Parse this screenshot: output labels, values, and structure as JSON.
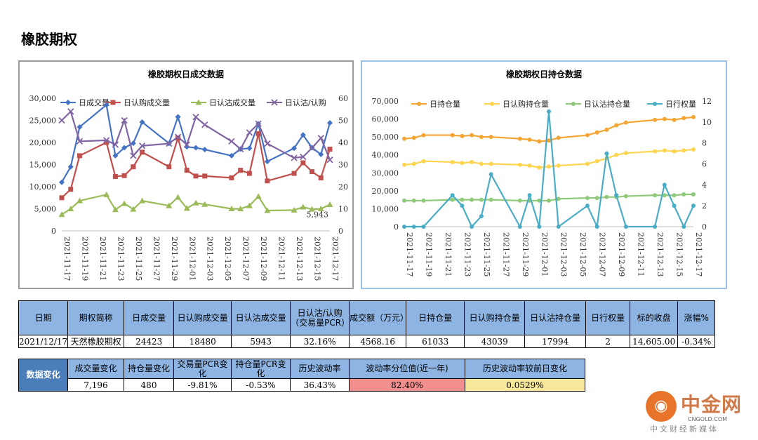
{
  "page": {
    "title": "橡胶期权"
  },
  "chart_data": [
    {
      "type": "line",
      "title": "橡胶期权日成交数据",
      "x": [
        "2021-11-17",
        "2021-11-18",
        "2021-11-19",
        "2021-11-22",
        "2021-11-23",
        "2021-11-24",
        "2021-11-25",
        "2021-11-26",
        "2021-11-29",
        "2021-11-30",
        "2021-12-01",
        "2021-12-02",
        "2021-12-03",
        "2021-12-06",
        "2021-12-07",
        "2021-12-08",
        "2021-12-09",
        "2021-12-10",
        "2021-12-13",
        "2021-12-14",
        "2021-12-15",
        "2021-12-16",
        "2021-12-17"
      ],
      "xticks": [
        "2021-11-17",
        "2021-11-19",
        "2021-11-21",
        "2021-11-23",
        "2021-11-25",
        "2021-11-27",
        "2021-11-29",
        "2021-12-01",
        "2021-12-03",
        "2021-12-05",
        "2021-12-07",
        "2021-12-09",
        "2021-12-11",
        "2021-12-13",
        "2021-12-15",
        "2021-12-17"
      ],
      "xmin": "2021-11-17",
      "xmax": "2021-12-17",
      "ylim_left": [
        0,
        30000
      ],
      "yticks_left": [
        "0",
        "5,000",
        "10,000",
        "15,000",
        "20,000",
        "25,000",
        "30,000"
      ],
      "ylim_right": [
        0,
        60
      ],
      "yticks_right": [
        "0",
        "10",
        "20",
        "30",
        "40",
        "50",
        "60"
      ],
      "legend_position": "top",
      "series": [
        {
          "name": "日成交量",
          "axis": "left",
          "color": "#4472c4",
          "marker": "diamond",
          "values": [
            11000,
            14500,
            23500,
            28500,
            17000,
            18800,
            19800,
            24600,
            19800,
            25800,
            19000,
            18800,
            18400,
            17000,
            18500,
            18700,
            24200,
            15700,
            18700,
            21700,
            18800,
            17300,
            24423
          ]
        },
        {
          "name": "日认购成交量",
          "axis": "left",
          "color": "#c0504d",
          "marker": "square",
          "values": [
            7500,
            9400,
            17000,
            20000,
            12300,
            12500,
            14500,
            17800,
            14500,
            21000,
            13700,
            12400,
            12400,
            12000,
            13700,
            13000,
            22000,
            11300,
            13000,
            15400,
            13400,
            12000,
            18480
          ]
        },
        {
          "name": "日认沽成交量",
          "axis": "left",
          "color": "#9bbb59",
          "marker": "triangle",
          "values": [
            3700,
            5000,
            6800,
            8200,
            4800,
            6200,
            4900,
            6800,
            5700,
            7600,
            5100,
            6300,
            6000,
            5000,
            5000,
            5700,
            7800,
            4600,
            4700,
            5400,
            4900,
            5000,
            5943
          ]
        },
        {
          "name": "日认沽/认购",
          "axis": "right",
          "color": "#8064a2",
          "marker": "x",
          "values": [
            50,
            54,
            40.5,
            41,
            39,
            50,
            34,
            38.5,
            39.5,
            42.5,
            39,
            51.5,
            48,
            40.5,
            37,
            44.5,
            48.5,
            39.5,
            33,
            33.5,
            37.5,
            42,
            32.16
          ]
        }
      ],
      "annotation": "5,943"
    },
    {
      "type": "line",
      "title": "橡胶期权日持仓数据",
      "x": [
        "2021-11-17",
        "2021-11-18",
        "2021-11-19",
        "2021-11-22",
        "2021-11-23",
        "2021-11-24",
        "2021-11-25",
        "2021-11-26",
        "2021-11-29",
        "2021-11-30",
        "2021-12-01",
        "2021-12-02",
        "2021-12-03",
        "2021-12-06",
        "2021-12-07",
        "2021-12-08",
        "2021-12-09",
        "2021-12-10",
        "2021-12-13",
        "2021-12-14",
        "2021-12-15",
        "2021-12-16",
        "2021-12-17"
      ],
      "xticks": [
        "2021-11-17",
        "2021-11-19",
        "2021-11-21",
        "2021-11-23",
        "2021-11-25",
        "2021-11-27",
        "2021-11-29",
        "2021-12-01",
        "2021-12-03",
        "2021-12-05",
        "2021-12-07",
        "2021-12-09",
        "2021-12-11",
        "2021-12-13",
        "2021-12-15",
        "2021-12-17"
      ],
      "xmin": "2021-11-17",
      "xmax": "2021-12-17",
      "ylim_left": [
        0,
        70000
      ],
      "yticks_left": [
        "0",
        "10,000",
        "20,000",
        "30,000",
        "40,000",
        "50,000",
        "60,000",
        "70,000"
      ],
      "ylim_right": [
        0,
        12
      ],
      "yticks_right": [
        "0",
        "2",
        "4",
        "6",
        "8",
        "10",
        "12"
      ],
      "legend_position": "top",
      "series": [
        {
          "name": "日持仓量",
          "axis": "left",
          "color": "#f4a533",
          "marker": "circle",
          "values": [
            49000,
            49500,
            51000,
            51000,
            50500,
            51000,
            50000,
            50000,
            49000,
            48500,
            47500,
            48000,
            49500,
            51000,
            52500,
            54000,
            56500,
            58000,
            59500,
            60000,
            59500,
            60500,
            61033
          ]
        },
        {
          "name": "日认购持仓量",
          "axis": "left",
          "color": "#ffd54f",
          "marker": "circle",
          "values": [
            34500,
            35000,
            36500,
            36000,
            35500,
            36000,
            35000,
            35000,
            34500,
            34000,
            33000,
            33500,
            34000,
            35000,
            36500,
            38000,
            40000,
            41000,
            42000,
            42500,
            42000,
            42500,
            43039
          ]
        },
        {
          "name": "日认沽持仓量",
          "axis": "left",
          "color": "#8fc97a",
          "marker": "circle",
          "values": [
            14500,
            14500,
            14500,
            15000,
            15000,
            15000,
            15000,
            15000,
            14500,
            14500,
            14500,
            14500,
            15500,
            16000,
            16000,
            16500,
            16500,
            17000,
            17500,
            17500,
            17500,
            18000,
            17994
          ]
        },
        {
          "name": "日行权量",
          "axis": "right",
          "color": "#4bacc6",
          "marker": "circle",
          "values": [
            0,
            0,
            0,
            3,
            2,
            0,
            1,
            5,
            0,
            3,
            0,
            11,
            0,
            2,
            0,
            7,
            3,
            0,
            0,
            4,
            2,
            0,
            2
          ]
        }
      ]
    }
  ],
  "table1": {
    "headers": [
      "日期",
      "期权简称",
      "日成交量",
      "日认购成交量",
      "日认沽成交量",
      "日认沽/认购（交易量PCR）",
      "成交额（万元）",
      "日持仓量",
      "日认购持仓量",
      "日认沽持仓量",
      "日行权量",
      "标的收盘",
      "涨幅%"
    ],
    "row": [
      "2021/12/17",
      "天然橡胶期权",
      "24423",
      "18480",
      "5943",
      "32.16%",
      "4568.16",
      "61033",
      "43039",
      "17994",
      "2",
      "14,605.00",
      "-0.34%"
    ]
  },
  "table2": {
    "row_header": "数据变化",
    "headers": [
      "成交量变化",
      "持仓量变化",
      "交易量PCR变化",
      "持仓量PCR变化",
      "历史波动率",
      "波动率分位值(近一年)",
      "历史波动率较前日变化"
    ],
    "row": [
      "7,196",
      "480",
      "-9.81%",
      "-0.53%",
      "36.43%",
      "82.40%",
      "0.0529%"
    ],
    "highlight_colors": {
      "percentile": "#f18f8f",
      "change": "#f7e79a"
    }
  },
  "logo": {
    "name": "中金网",
    "domain": "CNGOLD.COM",
    "slogan": "中文财经新媒体"
  }
}
